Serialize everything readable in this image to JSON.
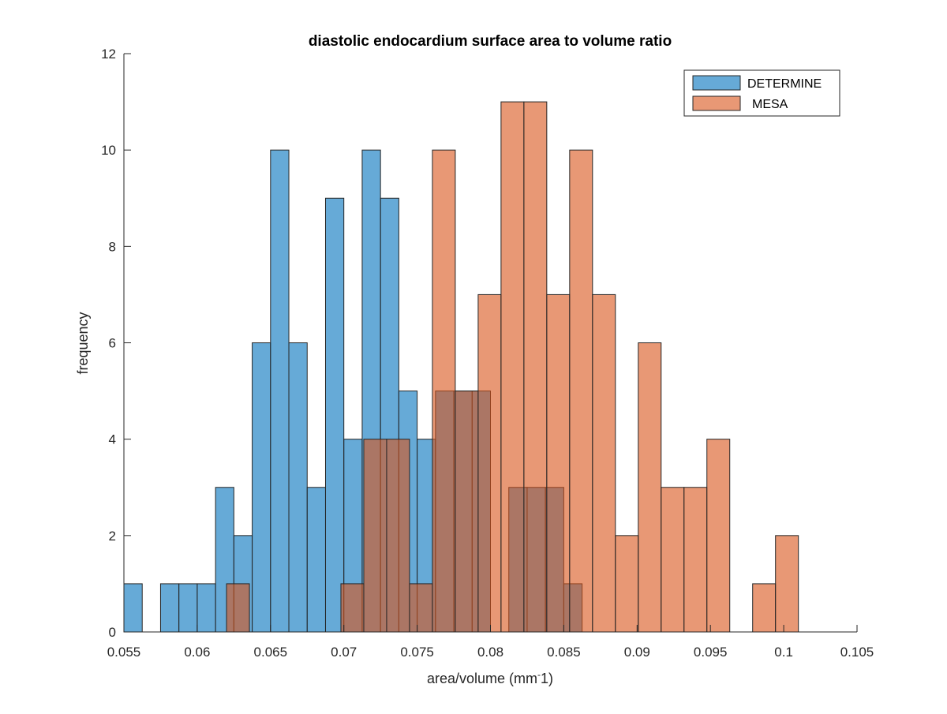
{
  "chart_data": {
    "type": "bar",
    "title": "diastolic endocardium surface area to volume ratio",
    "xlabel": "area/volume (mm",
    "xlabel_sup": "-",
    "xlabel_tail": "1)",
    "ylabel": "frequency",
    "xlim": [
      0.055,
      0.105
    ],
    "ylim": [
      0,
      12
    ],
    "xticks": [
      0.055,
      0.06,
      0.065,
      0.07,
      0.075,
      0.08,
      0.085,
      0.09,
      0.095,
      0.1,
      0.105
    ],
    "xtick_labels": [
      "0.055",
      "0.06",
      "0.065",
      "0.07",
      "0.075",
      "0.08",
      "0.085",
      "0.09",
      "0.095",
      "0.1",
      "0.105"
    ],
    "yticks": [
      0,
      2,
      4,
      6,
      8,
      10,
      12
    ],
    "ytick_labels": [
      "0",
      "2",
      "4",
      "6",
      "8",
      "10",
      "12"
    ],
    "grid": false,
    "legend": "top-right",
    "series": [
      {
        "name": "DETERMINE",
        "color": "#0072BD",
        "fill_color": "#5EA5D6",
        "bin_width": 0.00125,
        "bin_start": 0.055,
        "counts": [
          1,
          0,
          1,
          1,
          1,
          3,
          2,
          6,
          10,
          6,
          3,
          9,
          4,
          10,
          9,
          5,
          4,
          5,
          5,
          5,
          0,
          3,
          3,
          3,
          1
        ]
      },
      {
        "name": "MESA",
        "color": "#D95319",
        "fill_color": "#E8997A",
        "bin_width": 0.00156,
        "bin_start": 0.062,
        "counts": [
          1,
          0,
          0,
          0,
          0,
          1,
          4,
          4,
          1,
          10,
          5,
          7,
          11,
          11,
          7,
          10,
          7,
          2,
          6,
          3,
          3,
          4,
          0,
          1,
          2
        ]
      }
    ]
  }
}
